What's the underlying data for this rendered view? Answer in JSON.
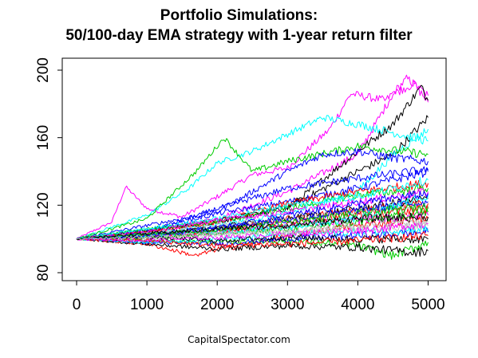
{
  "chart_data": {
    "type": "line",
    "title_lines": [
      "Portfolio Simulations:",
      "50/100-day EMA strategy with 1-year return filter"
    ],
    "xlabel": "",
    "ylabel": "",
    "xlim": [
      0,
      5040
    ],
    "ylim": [
      80,
      200
    ],
    "x_ticks": [
      0,
      1000,
      2000,
      3000,
      4000,
      5000
    ],
    "y_ticks": [
      80,
      120,
      160,
      200
    ],
    "start_value": 100,
    "x_max": 5040,
    "grid": false,
    "legend": "none",
    "series_colors": [
      "#000000",
      "#ff0000",
      "#00cd00",
      "#0000ff",
      "#00ffff",
      "#ff00ff",
      "#bebebe"
    ],
    "series": [
      {
        "color": "#ff00ff",
        "values": [
          [
            0,
            100
          ],
          [
            500,
            110
          ],
          [
            700,
            131
          ],
          [
            1000,
            118
          ],
          [
            1500,
            113
          ],
          [
            2000,
            125
          ],
          [
            2500,
            138
          ],
          [
            3000,
            142
          ],
          [
            3600,
            165
          ],
          [
            3900,
            186
          ],
          [
            4400,
            182
          ],
          [
            4700,
            195
          ],
          [
            5000,
            185
          ]
        ]
      },
      {
        "color": "#ff00ff",
        "values": [
          [
            0,
            100
          ],
          [
            1000,
            104
          ],
          [
            2000,
            112
          ],
          [
            3000,
            128
          ],
          [
            4000,
            150
          ],
          [
            4500,
            186
          ],
          [
            4800,
            192
          ],
          [
            5000,
            181
          ]
        ]
      },
      {
        "color": "#000000",
        "values": [
          [
            0,
            100
          ],
          [
            1000,
            104
          ],
          [
            2000,
            111
          ],
          [
            3000,
            118
          ],
          [
            4000,
            152
          ],
          [
            4500,
            168
          ],
          [
            4900,
            190
          ],
          [
            5000,
            182
          ]
        ]
      },
      {
        "color": "#000000",
        "values": [
          [
            0,
            100
          ],
          [
            1000,
            105
          ],
          [
            2000,
            110
          ],
          [
            3000,
            119
          ],
          [
            4000,
            140
          ],
          [
            4500,
            150
          ],
          [
            5000,
            172
          ]
        ]
      },
      {
        "color": "#00ffff",
        "values": [
          [
            0,
            100
          ],
          [
            1000,
            114
          ],
          [
            1600,
            130
          ],
          [
            2000,
            145
          ],
          [
            2500,
            152
          ],
          [
            3000,
            162
          ],
          [
            3500,
            172
          ],
          [
            4000,
            168
          ],
          [
            4500,
            163
          ],
          [
            5000,
            158
          ]
        ]
      },
      {
        "color": "#00ffff",
        "values": [
          [
            0,
            100
          ],
          [
            1000,
            103
          ],
          [
            2000,
            108
          ],
          [
            3000,
            115
          ],
          [
            4000,
            128
          ],
          [
            4500,
            150
          ],
          [
            5000,
            165
          ]
        ]
      },
      {
        "color": "#00cd00",
        "values": [
          [
            0,
            100
          ],
          [
            1000,
            112
          ],
          [
            1700,
            140
          ],
          [
            2100,
            160
          ],
          [
            2500,
            140
          ],
          [
            3000,
            146
          ],
          [
            4000,
            155
          ],
          [
            5000,
            150
          ]
        ]
      },
      {
        "color": "#0000ff",
        "values": [
          [
            0,
            100
          ],
          [
            1000,
            108
          ],
          [
            2000,
            116
          ],
          [
            3000,
            140
          ],
          [
            3500,
            150
          ],
          [
            4000,
            152
          ],
          [
            4500,
            148
          ],
          [
            5000,
            146
          ]
        ]
      },
      {
        "color": "#0000ff",
        "values": [
          [
            0,
            100
          ],
          [
            1000,
            105
          ],
          [
            2000,
            115
          ],
          [
            3000,
            122
          ],
          [
            4000,
            130
          ],
          [
            5000,
            140
          ]
        ]
      },
      {
        "color": "#0000ff",
        "values": [
          [
            0,
            100
          ],
          [
            1000,
            104
          ],
          [
            2000,
            118
          ],
          [
            3000,
            130
          ],
          [
            4000,
            136
          ],
          [
            5000,
            141
          ]
        ]
      },
      {
        "color": "#ff0000",
        "values": [
          [
            0,
            100
          ],
          [
            1000,
            104
          ],
          [
            2000,
            110
          ],
          [
            3000,
            121
          ],
          [
            4000,
            128
          ],
          [
            5000,
            133
          ]
        ]
      },
      {
        "color": "#ff0000",
        "values": [
          [
            0,
            100
          ],
          [
            1000,
            103
          ],
          [
            2000,
            104
          ],
          [
            3000,
            112
          ],
          [
            4000,
            117
          ],
          [
            5000,
            121
          ]
        ]
      },
      {
        "color": "#00cd00",
        "values": [
          [
            0,
            100
          ],
          [
            1000,
            106
          ],
          [
            2000,
            110
          ],
          [
            3000,
            118
          ],
          [
            4000,
            126
          ],
          [
            5000,
            130
          ]
        ]
      },
      {
        "color": "#000000",
        "values": [
          [
            0,
            100
          ],
          [
            1000,
            102
          ],
          [
            2000,
            107
          ],
          [
            3000,
            112
          ],
          [
            4000,
            118
          ],
          [
            5000,
            124
          ]
        ]
      },
      {
        "color": "#00ffff",
        "values": [
          [
            0,
            100
          ],
          [
            1000,
            106
          ],
          [
            2000,
            112
          ],
          [
            3000,
            120
          ],
          [
            4000,
            125
          ],
          [
            5000,
            135
          ]
        ]
      },
      {
        "color": "#ff00ff",
        "values": [
          [
            0,
            100
          ],
          [
            1000,
            104
          ],
          [
            2000,
            111
          ],
          [
            3000,
            116
          ],
          [
            4000,
            122
          ],
          [
            5000,
            128
          ]
        ]
      },
      {
        "color": "#bebebe",
        "values": [
          [
            0,
            100
          ],
          [
            1000,
            103
          ],
          [
            2000,
            108
          ],
          [
            3000,
            112
          ],
          [
            4000,
            116
          ],
          [
            5000,
            120
          ]
        ]
      },
      {
        "color": "#ff0000",
        "values": [
          [
            0,
            100
          ],
          [
            1000,
            97
          ],
          [
            1700,
            90
          ],
          [
            2000,
            94
          ],
          [
            2400,
            96
          ],
          [
            3000,
            102
          ],
          [
            4000,
            108
          ],
          [
            5000,
            112
          ]
        ]
      },
      {
        "color": "#00cd00",
        "values": [
          [
            0,
            100
          ],
          [
            1000,
            99
          ],
          [
            2000,
            98
          ],
          [
            3000,
            99
          ],
          [
            4000,
            96
          ],
          [
            4500,
            90
          ],
          [
            5000,
            98
          ]
        ]
      },
      {
        "color": "#000000",
        "values": [
          [
            0,
            100
          ],
          [
            1000,
            97
          ],
          [
            2000,
            94
          ],
          [
            3000,
            96
          ],
          [
            4000,
            95
          ],
          [
            4800,
            92
          ],
          [
            5000,
            93
          ]
        ]
      },
      {
        "color": "#0000ff",
        "values": [
          [
            0,
            100
          ],
          [
            1000,
            98
          ],
          [
            2000,
            97
          ],
          [
            3000,
            100
          ],
          [
            4000,
            102
          ],
          [
            5000,
            104
          ]
        ]
      },
      {
        "color": "#00ffff",
        "values": [
          [
            0,
            100
          ],
          [
            1000,
            98
          ],
          [
            2000,
            100
          ],
          [
            3000,
            103
          ],
          [
            4000,
            104
          ],
          [
            5000,
            106
          ]
        ]
      },
      {
        "color": "#bebebe",
        "values": [
          [
            0,
            100
          ],
          [
            1000,
            100
          ],
          [
            2000,
            102
          ],
          [
            3000,
            105
          ],
          [
            4000,
            106
          ],
          [
            5000,
            108
          ]
        ]
      },
      {
        "color": "#ff00ff",
        "values": [
          [
            0,
            100
          ],
          [
            1000,
            101
          ],
          [
            2000,
            104
          ],
          [
            3000,
            108
          ],
          [
            4000,
            111
          ],
          [
            5000,
            114
          ]
        ]
      },
      {
        "color": "#00cd00",
        "values": [
          [
            0,
            100
          ],
          [
            1000,
            101
          ],
          [
            2000,
            103
          ],
          [
            3000,
            106
          ],
          [
            4000,
            110
          ],
          [
            5000,
            116
          ]
        ]
      },
      {
        "color": "#ff0000",
        "values": [
          [
            0,
            100
          ],
          [
            1000,
            102
          ],
          [
            2000,
            105
          ],
          [
            3000,
            109
          ],
          [
            4000,
            114
          ],
          [
            5000,
            118
          ]
        ]
      },
      {
        "color": "#0000ff",
        "values": [
          [
            0,
            100
          ],
          [
            1000,
            103
          ],
          [
            2000,
            107
          ],
          [
            3000,
            111
          ],
          [
            4000,
            117
          ],
          [
            5000,
            122
          ]
        ]
      },
      {
        "color": "#000000",
        "values": [
          [
            0,
            100
          ],
          [
            1000,
            101
          ],
          [
            2000,
            99
          ],
          [
            3000,
            101
          ],
          [
            4000,
            100
          ],
          [
            5000,
            100
          ]
        ]
      },
      {
        "color": "#ff0000",
        "values": [
          [
            0,
            100
          ],
          [
            1000,
            99
          ],
          [
            2000,
            96
          ],
          [
            3000,
            97
          ],
          [
            4000,
            99
          ],
          [
            5000,
            102
          ]
        ]
      },
      {
        "color": "#00ffff",
        "values": [
          [
            0,
            100
          ],
          [
            1000,
            102
          ],
          [
            2000,
            104
          ],
          [
            3000,
            107
          ],
          [
            4000,
            112
          ],
          [
            5000,
            126
          ]
        ]
      },
      {
        "color": "#0000ff",
        "values": [
          [
            0,
            100
          ],
          [
            1000,
            102
          ],
          [
            2000,
            106
          ],
          [
            3000,
            114
          ],
          [
            4000,
            121
          ],
          [
            5000,
            127
          ]
        ]
      },
      {
        "color": "#00cd00",
        "values": [
          [
            0,
            100
          ],
          [
            1000,
            103
          ],
          [
            2000,
            105
          ],
          [
            3000,
            110
          ],
          [
            4000,
            115
          ],
          [
            5000,
            119
          ]
        ]
      },
      {
        "color": "#ff00ff",
        "values": [
          [
            0,
            100
          ],
          [
            1000,
            99
          ],
          [
            2000,
            101
          ],
          [
            3000,
            103
          ],
          [
            4000,
            105
          ],
          [
            5000,
            109
          ]
        ]
      },
      {
        "color": "#000000",
        "values": [
          [
            0,
            100
          ],
          [
            1000,
            103
          ],
          [
            2000,
            106
          ],
          [
            3000,
            108
          ],
          [
            4000,
            112
          ],
          [
            5000,
            113
          ]
        ]
      },
      {
        "color": "#bebebe",
        "values": [
          [
            0,
            100
          ],
          [
            1000,
            101
          ],
          [
            2000,
            103
          ],
          [
            3000,
            104
          ],
          [
            4000,
            108
          ],
          [
            5000,
            110
          ]
        ]
      }
    ]
  },
  "credit": "CapitalSpectator.com"
}
